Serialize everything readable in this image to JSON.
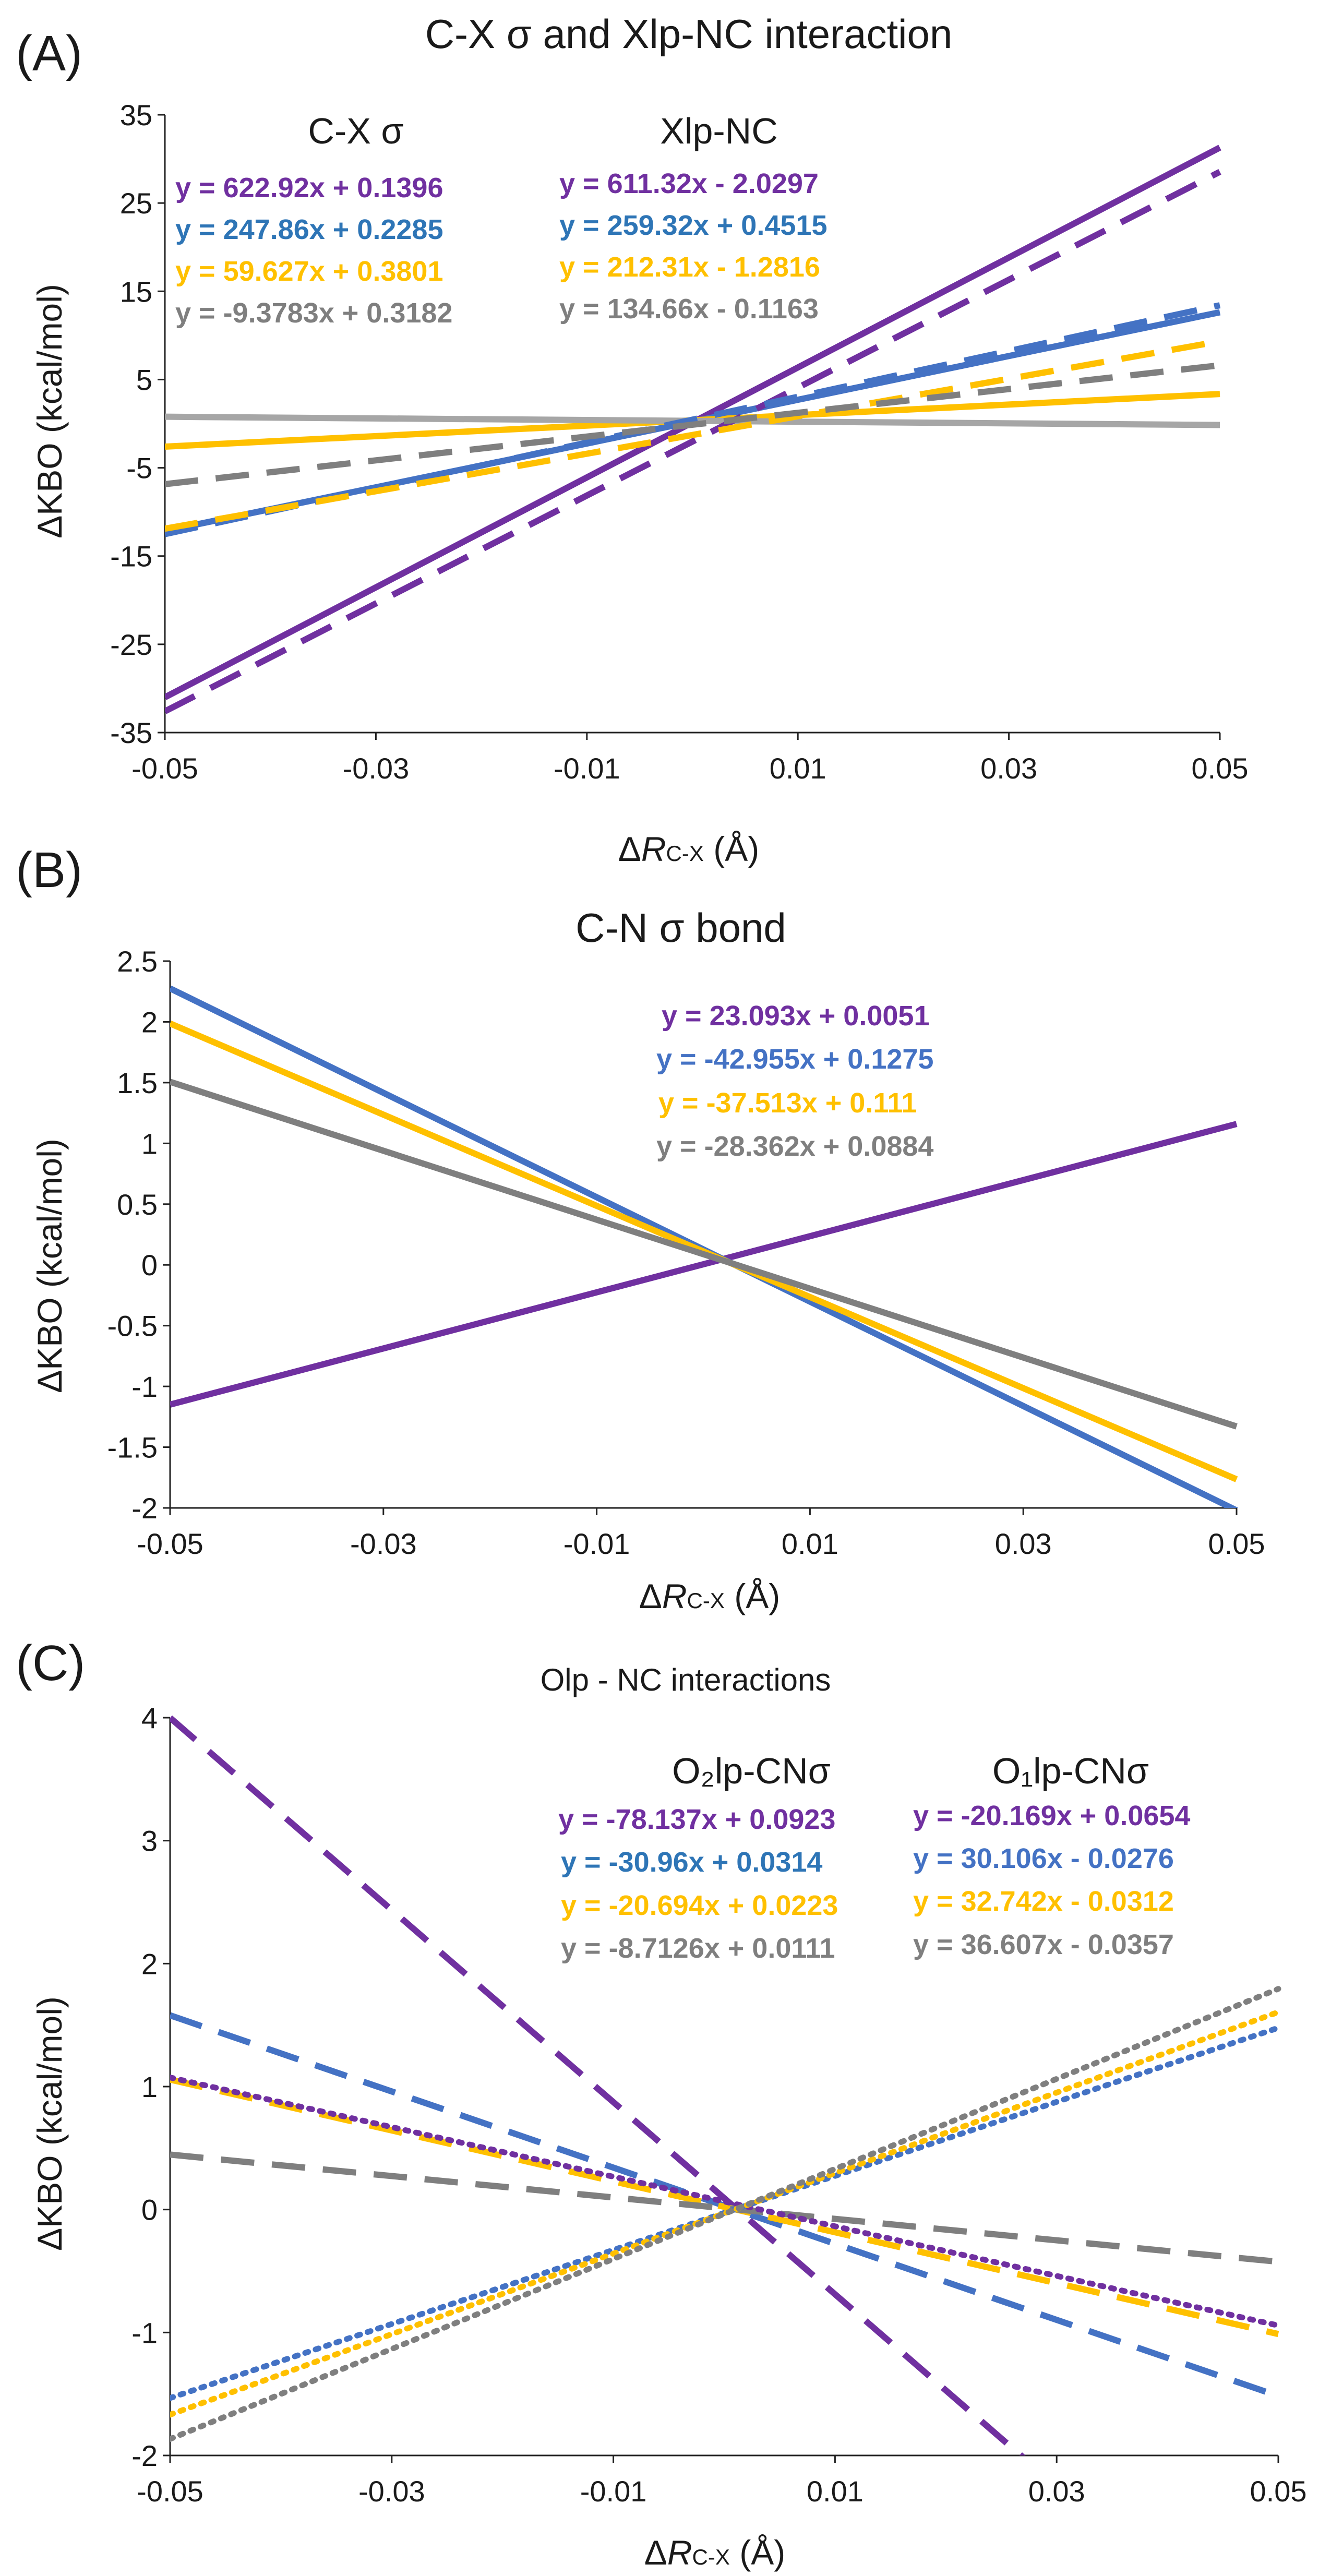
{
  "colors": {
    "purple": "#7030A0",
    "blue": "#4472C4",
    "blue_text": "#2E75B6",
    "yellow": "#FFC000",
    "gray": "#7F7F7F",
    "lightgray": "#A6A6A6"
  },
  "chart_data": [
    {
      "type": "line",
      "panel": "(A)",
      "title": "C-X σ and Xlp-NC interaction",
      "xlabel_prefix": "Δ",
      "xlabel_italic": "R",
      "xlabel_sub": "C-X",
      "xlabel_suffix": " (Å)",
      "ylabel": "ΔKBO (kcal/mol)",
      "xlim": [
        -0.05,
        0.05
      ],
      "ylim": [
        -35,
        35
      ],
      "xticks": [
        "-0.05",
        "-0.03",
        "-0.01",
        "0.01",
        "0.03",
        "0.05"
      ],
      "yticks": [
        "35",
        "25",
        "15",
        "5",
        "-5",
        "-15",
        "-25",
        "-35"
      ],
      "group_labels": [
        "C-X σ",
        "Xlp-NC"
      ],
      "series": [
        {
          "name": "C-X σ purple",
          "group": "C-X σ",
          "color": "#7030A0",
          "style": "solid",
          "slope": 622.92,
          "intercept": 0.1396,
          "equation": "y = 622.92x + 0.1396"
        },
        {
          "name": "C-X σ blue",
          "group": "C-X σ",
          "color": "#4472C4",
          "style": "solid",
          "slope": 247.86,
          "intercept": 0.2285,
          "equation": "y = 247.86x + 0.2285"
        },
        {
          "name": "C-X σ yellow",
          "group": "C-X σ",
          "color": "#FFC000",
          "style": "solid",
          "slope": 59.627,
          "intercept": 0.3801,
          "equation": "y = 59.627x + 0.3801"
        },
        {
          "name": "C-X σ gray",
          "group": "C-X σ",
          "color": "#A6A6A6",
          "style": "solid",
          "slope": -9.3783,
          "intercept": 0.3182,
          "equation": "y = -9.3783x + 0.3182"
        },
        {
          "name": "Xlp-NC purple",
          "group": "Xlp-NC",
          "color": "#7030A0",
          "style": "dashed",
          "slope": 611.32,
          "intercept": -2.0297,
          "equation": "y = 611.32x - 2.0297"
        },
        {
          "name": "Xlp-NC blue",
          "group": "Xlp-NC",
          "color": "#4472C4",
          "style": "dashed",
          "slope": 259.32,
          "intercept": 0.4515,
          "equation": "y = 259.32x + 0.4515"
        },
        {
          "name": "Xlp-NC yellow",
          "group": "Xlp-NC",
          "color": "#FFC000",
          "style": "dashed",
          "slope": 212.31,
          "intercept": -1.2816,
          "equation": "y = 212.31x - 1.2816"
        },
        {
          "name": "Xlp-NC gray",
          "group": "Xlp-NC",
          "color": "#7F7F7F",
          "style": "dashed",
          "slope": 134.66,
          "intercept": -0.1163,
          "equation": "y = 134.66x - 0.1163"
        }
      ]
    },
    {
      "type": "line",
      "panel": "(B)",
      "title": "C-N σ bond",
      "xlabel_prefix": "Δ",
      "xlabel_italic": "R",
      "xlabel_sub": "C-X",
      "xlabel_suffix": " (Å)",
      "ylabel": "ΔKBO (kcal/mol)",
      "xlim": [
        -0.05,
        0.05
      ],
      "ylim": [
        -2,
        2.5
      ],
      "xticks": [
        "-0.05",
        "-0.03",
        "-0.01",
        "0.01",
        "0.03",
        "0.05"
      ],
      "yticks": [
        "2.5",
        "2",
        "1.5",
        "1",
        "0.5",
        "0",
        "-0.5",
        "-1",
        "-1.5",
        "-2"
      ],
      "series": [
        {
          "name": "C-N σ purple",
          "color": "#7030A0",
          "style": "solid",
          "slope": 23.093,
          "intercept": 0.0051,
          "equation": "y = 23.093x + 0.0051"
        },
        {
          "name": "C-N σ blue",
          "color": "#4472C4",
          "style": "solid",
          "slope": -42.955,
          "intercept": 0.1275,
          "equation": "y = -42.955x + 0.1275"
        },
        {
          "name": "C-N σ yellow",
          "color": "#FFC000",
          "style": "solid",
          "slope": -37.513,
          "intercept": 0.111,
          "equation": "y = -37.513x + 0.111"
        },
        {
          "name": "C-N σ gray",
          "color": "#7F7F7F",
          "style": "solid",
          "slope": -28.362,
          "intercept": 0.0884,
          "equation": "y = -28.362x + 0.0884"
        }
      ]
    },
    {
      "type": "line",
      "panel": "(C)",
      "title": "Olp - NC interactions",
      "xlabel_prefix": "Δ",
      "xlabel_italic": "R",
      "xlabel_sub": "C-X",
      "xlabel_suffix": " (Å)",
      "ylabel": "ΔKBO (kcal/mol)",
      "xlim": [
        -0.05,
        0.05
      ],
      "ylim": [
        -2,
        4
      ],
      "xticks": [
        "-0.05",
        "-0.03",
        "-0.01",
        "0.01",
        "0.03",
        "0.05"
      ],
      "yticks": [
        "4",
        "3",
        "2",
        "1",
        "0",
        "-1",
        "-2"
      ],
      "group_labels": [
        "O₂lp-CNσ",
        "O₁lp-CNσ"
      ],
      "series": [
        {
          "name": "O2lp-CNσ purple",
          "group": "O₂lp-CNσ",
          "color": "#7030A0",
          "style": "dashed",
          "slope": -78.137,
          "intercept": 0.0923,
          "equation": "y = -78.137x + 0.0923"
        },
        {
          "name": "O2lp-CNσ blue",
          "group": "O₂lp-CNσ",
          "color": "#4472C4",
          "style": "dashed",
          "slope": -30.96,
          "intercept": 0.0314,
          "equation": "y = -30.96x + 0.0314"
        },
        {
          "name": "O2lp-CNσ yellow",
          "group": "O₂lp-CNσ",
          "color": "#FFC000",
          "style": "dashed",
          "slope": -20.694,
          "intercept": 0.0223,
          "equation": "y = -20.694x + 0.0223"
        },
        {
          "name": "O2lp-CNσ gray",
          "group": "O₂lp-CNσ",
          "color": "#7F7F7F",
          "style": "dashed",
          "slope": -8.7126,
          "intercept": 0.0111,
          "equation": "y = -8.7126x + 0.0111"
        },
        {
          "name": "O1lp-CNσ purple",
          "group": "O₁lp-CNσ",
          "color": "#7030A0",
          "style": "dotted",
          "slope": -20.169,
          "intercept": 0.0654,
          "equation": "y = -20.169x + 0.0654"
        },
        {
          "name": "O1lp-CNσ blue",
          "group": "O₁lp-CNσ",
          "color": "#4472C4",
          "style": "dotted",
          "slope": 30.106,
          "intercept": -0.0276,
          "equation": "y = 30.106x - 0.0276"
        },
        {
          "name": "O1lp-CNσ yellow",
          "group": "O₁lp-CNσ",
          "color": "#FFC000",
          "style": "dotted",
          "slope": 32.742,
          "intercept": -0.0312,
          "equation": "y = 32.742x - 0.0312"
        },
        {
          "name": "O1lp-CNσ gray",
          "group": "O₁lp-CNσ",
          "color": "#7F7F7F",
          "style": "dotted",
          "slope": 36.607,
          "intercept": -0.0357,
          "equation": "y = 36.607x - 0.0357"
        }
      ]
    }
  ]
}
